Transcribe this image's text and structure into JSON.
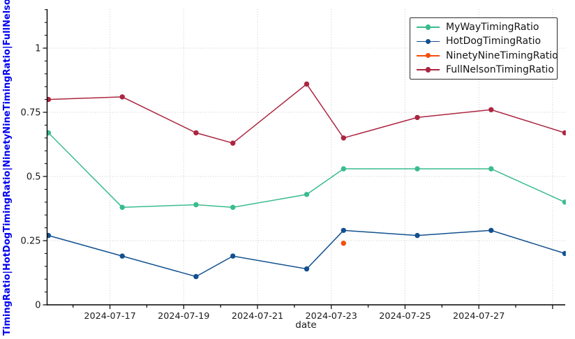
{
  "chart_data": {
    "type": "line",
    "title": "",
    "xlabel": "date",
    "ylabel_visible": "TimingRatio|HotDogTimingRatio|NinetyNineTimingRatio|FullNelson",
    "x": [
      "2024-07-15",
      "2024-07-17",
      "2024-07-19",
      "2024-07-20",
      "2024-07-22",
      "2024-07-23",
      "2024-07-25",
      "2024-07-27",
      "2024-07-29"
    ],
    "series": [
      {
        "name": "MyWayTimingRatio",
        "color": "#3abc8d",
        "values": [
          0.67,
          0.38,
          0.39,
          0.38,
          0.43,
          0.53,
          0.53,
          0.53,
          0.4
        ]
      },
      {
        "name": "HotDogTimingRatio",
        "color": "#12508f",
        "values": [
          0.27,
          0.19,
          0.11,
          0.19,
          0.14,
          0.29,
          0.27,
          0.29,
          0.2
        ]
      },
      {
        "name": "NinetyNineTimingRatio",
        "color": "#f44e0d",
        "values": [
          null,
          null,
          null,
          null,
          null,
          0.24,
          null,
          null,
          null
        ]
      },
      {
        "name": "FullNelsonTimingRatio",
        "color": "#ab2540",
        "values": [
          0.8,
          0.81,
          0.67,
          0.63,
          0.86,
          0.65,
          0.73,
          0.76,
          0.67
        ]
      }
    ],
    "xtick_labels": [
      "2024-07-17",
      "2024-07-19",
      "2024-07-21",
      "2024-07-23",
      "2024-07-25",
      "2024-07-27"
    ],
    "xticks_unlabeled": [
      "2024-07-29"
    ],
    "minor_xticks_daily": {
      "from": "2024-07-16",
      "to": "2024-07-29"
    },
    "yticks": [
      0,
      0.25,
      0.5,
      0.75,
      1
    ],
    "ytick_labels": [
      "0",
      "0.25",
      "0.5",
      "0.75",
      "1"
    ],
    "y_minor_step": 0.05,
    "ylim": [
      0,
      1.15
    ],
    "grid": true,
    "grid_style": "dotted",
    "legend_position": "top-right",
    "colors": {
      "axis": "#000000",
      "grid": "#c6c6c6",
      "tick_label": "#1a1a1a",
      "ylabel": "#0000f0",
      "background": "#ffffff"
    }
  }
}
